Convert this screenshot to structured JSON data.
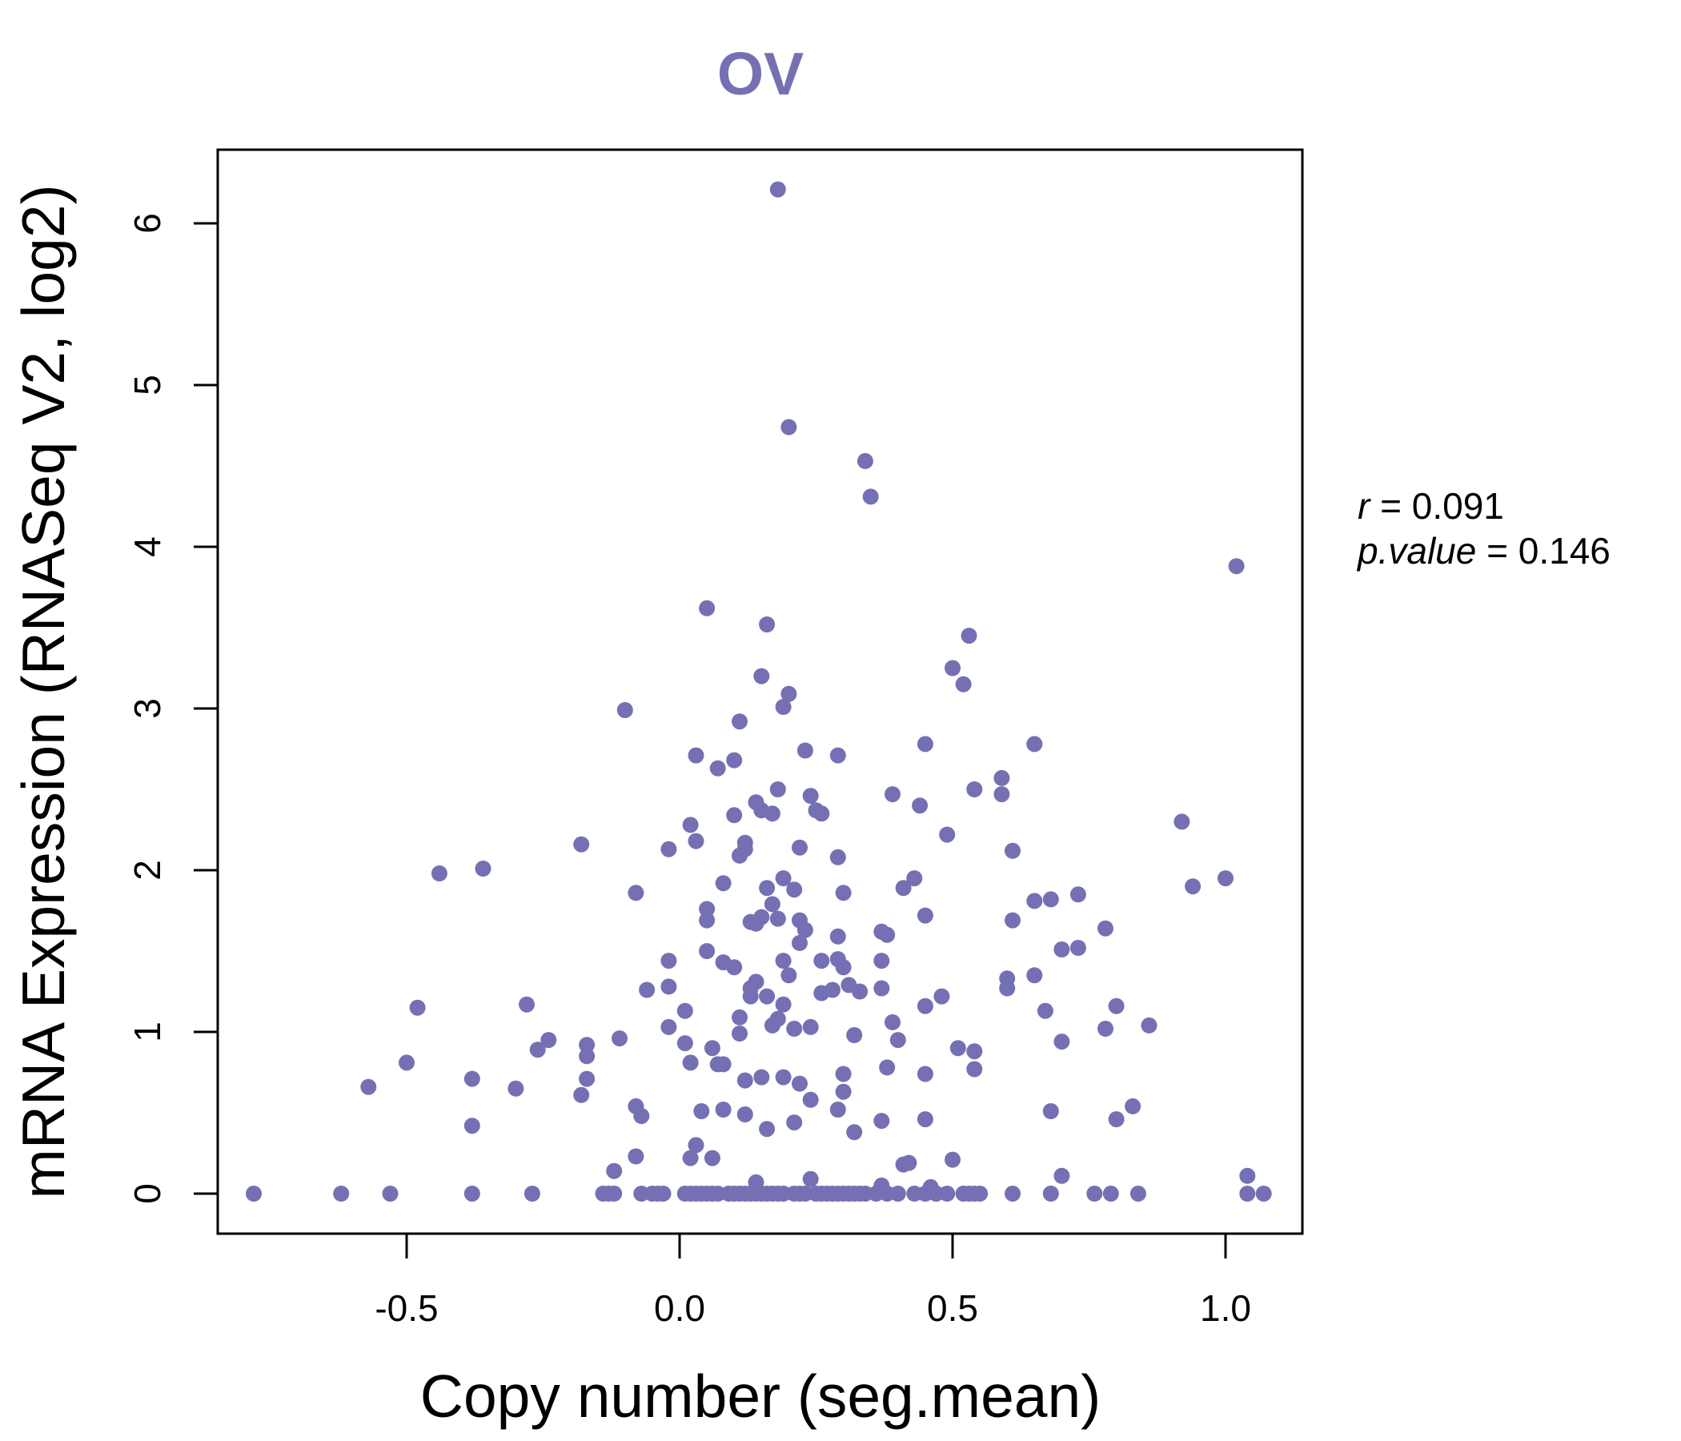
{
  "colors": {
    "point": "#7570b3",
    "title": "#7570b3"
  },
  "chart_data": {
    "type": "scatter",
    "title": "OV",
    "xlabel": "Copy number (seg.mean)",
    "ylabel": "mRNA Expression (RNASeq V2, log2)",
    "xlim": [
      -0.85,
      1.14
    ],
    "ylim": [
      -0.25,
      6.46
    ],
    "x_ticks": [
      -0.5,
      0.0,
      0.5,
      1.0
    ],
    "x_tick_labels": [
      "-0.5",
      "0.0",
      "0.5",
      "1.0"
    ],
    "y_ticks": [
      0,
      1,
      2,
      3,
      4,
      5,
      6
    ],
    "y_tick_labels": [
      "0",
      "1",
      "2",
      "3",
      "4",
      "5",
      "6"
    ],
    "stats": {
      "r_label": "r",
      "r_value": "0.091",
      "p_label": "p.value",
      "p_value": "0.146"
    },
    "points": [
      [
        -0.78,
        0
      ],
      [
        -0.62,
        0
      ],
      [
        -0.53,
        0
      ],
      [
        -0.38,
        0
      ],
      [
        -0.27,
        0
      ],
      [
        -0.14,
        0
      ],
      [
        -0.13,
        0
      ],
      [
        -0.12,
        0
      ],
      [
        -0.07,
        0
      ],
      [
        -0.05,
        0
      ],
      [
        -0.04,
        0
      ],
      [
        -0.03,
        0
      ],
      [
        0.01,
        0
      ],
      [
        0.02,
        0
      ],
      [
        0.03,
        0
      ],
      [
        0.04,
        0
      ],
      [
        0.05,
        0
      ],
      [
        0.06,
        0
      ],
      [
        0.07,
        0
      ],
      [
        0.09,
        0
      ],
      [
        0.1,
        0
      ],
      [
        0.11,
        0
      ],
      [
        0.12,
        0
      ],
      [
        0.13,
        0
      ],
      [
        0.14,
        0
      ],
      [
        0.15,
        0
      ],
      [
        0.16,
        0
      ],
      [
        0.17,
        0
      ],
      [
        0.18,
        0
      ],
      [
        0.19,
        0
      ],
      [
        0.21,
        0
      ],
      [
        0.22,
        0
      ],
      [
        0.23,
        0
      ],
      [
        0.25,
        0
      ],
      [
        0.26,
        0
      ],
      [
        0.27,
        0
      ],
      [
        0.28,
        0
      ],
      [
        0.29,
        0
      ],
      [
        0.3,
        0
      ],
      [
        0.31,
        0
      ],
      [
        0.32,
        0
      ],
      [
        0.33,
        0
      ],
      [
        0.34,
        0
      ],
      [
        0.36,
        0
      ],
      [
        0.38,
        0
      ],
      [
        0.4,
        0
      ],
      [
        0.43,
        0
      ],
      [
        0.45,
        0
      ],
      [
        0.47,
        0
      ],
      [
        0.49,
        0
      ],
      [
        0.52,
        0
      ],
      [
        0.53,
        0
      ],
      [
        0.54,
        0
      ],
      [
        0.55,
        0
      ],
      [
        0.61,
        0
      ],
      [
        0.68,
        0
      ],
      [
        0.76,
        0
      ],
      [
        0.79,
        0
      ],
      [
        0.84,
        0
      ],
      [
        1.04,
        0
      ],
      [
        1.07,
        0
      ],
      [
        0.14,
        0.07
      ],
      [
        0.24,
        0.09
      ],
      [
        0.37,
        0.05
      ],
      [
        0.46,
        0.04
      ],
      [
        0.7,
        0.11
      ],
      [
        1.04,
        0.11
      ],
      [
        -0.12,
        0.14
      ],
      [
        -0.08,
        0.23
      ],
      [
        0.02,
        0.22
      ],
      [
        0.06,
        0.22
      ],
      [
        0.42,
        0.19
      ],
      [
        0.41,
        0.18
      ],
      [
        0.5,
        0.21
      ],
      [
        0.03,
        0.3
      ],
      [
        0.16,
        0.4
      ],
      [
        0.21,
        0.44
      ],
      [
        0.32,
        0.38
      ],
      [
        -0.38,
        0.42
      ],
      [
        0.12,
        0.49
      ],
      [
        0.04,
        0.51
      ],
      [
        0.08,
        0.52
      ],
      [
        -0.07,
        0.48
      ],
      [
        -0.08,
        0.54
      ],
      [
        0.29,
        0.52
      ],
      [
        0.37,
        0.45
      ],
      [
        0.45,
        0.46
      ],
      [
        0.68,
        0.51
      ],
      [
        0.8,
        0.46
      ],
      [
        0.83,
        0.54
      ],
      [
        0.24,
        0.58
      ],
      [
        -0.57,
        0.66
      ],
      [
        -0.5,
        0.81
      ],
      [
        -0.38,
        0.71
      ],
      [
        -0.3,
        0.65
      ],
      [
        -0.18,
        0.61
      ],
      [
        -0.17,
        0.71
      ],
      [
        -0.17,
        0.85
      ],
      [
        -0.17,
        0.92
      ],
      [
        -0.26,
        0.89
      ],
      [
        -0.24,
        0.95
      ],
      [
        -0.11,
        0.96
      ],
      [
        0.01,
        0.93
      ],
      [
        0.02,
        0.81
      ],
      [
        0.06,
        0.9
      ],
      [
        0.07,
        0.8
      ],
      [
        0.08,
        0.8
      ],
      [
        0.12,
        0.7
      ],
      [
        0.15,
        0.72
      ],
      [
        0.19,
        0.72
      ],
      [
        0.22,
        0.68
      ],
      [
        0.3,
        0.74
      ],
      [
        0.3,
        0.63
      ],
      [
        0.32,
        0.98
      ],
      [
        0.38,
        0.78
      ],
      [
        0.4,
        0.95
      ],
      [
        0.45,
        0.74
      ],
      [
        0.51,
        0.9
      ],
      [
        0.54,
        0.88
      ],
      [
        0.54,
        0.77
      ],
      [
        0.7,
        0.94
      ],
      [
        0.78,
        1.02
      ],
      [
        -0.48,
        1.15
      ],
      [
        -0.28,
        1.17
      ],
      [
        -0.06,
        1.26
      ],
      [
        -0.02,
        1.28
      ],
      [
        -0.02,
        1.03
      ],
      [
        0.01,
        1.13
      ],
      [
        0.11,
        0.99
      ],
      [
        0.11,
        1.09
      ],
      [
        0.13,
        1.22
      ],
      [
        0.13,
        1.27
      ],
      [
        0.14,
        1.31
      ],
      [
        0.16,
        1.22
      ],
      [
        0.17,
        1.04
      ],
      [
        0.18,
        1.08
      ],
      [
        0.19,
        1.17
      ],
      [
        0.21,
        1.02
      ],
      [
        0.24,
        1.03
      ],
      [
        0.26,
        1.24
      ],
      [
        0.28,
        1.26
      ],
      [
        0.31,
        1.29
      ],
      [
        0.33,
        1.25
      ],
      [
        0.37,
        1.27
      ],
      [
        0.39,
        1.06
      ],
      [
        0.45,
        1.16
      ],
      [
        0.48,
        1.22
      ],
      [
        0.6,
        1.27
      ],
      [
        0.6,
        1.33
      ],
      [
        0.65,
        1.35
      ],
      [
        0.67,
        1.13
      ],
      [
        0.8,
        1.16
      ],
      [
        0.86,
        1.04
      ],
      [
        -0.02,
        1.44
      ],
      [
        0.05,
        1.5
      ],
      [
        0.08,
        1.43
      ],
      [
        0.1,
        1.4
      ],
      [
        0.13,
        1.68
      ],
      [
        0.14,
        1.67
      ],
      [
        0.15,
        1.71
      ],
      [
        0.17,
        1.79
      ],
      [
        0.18,
        1.7
      ],
      [
        0.19,
        1.44
      ],
      [
        0.2,
        1.35
      ],
      [
        0.22,
        1.55
      ],
      [
        0.22,
        1.69
      ],
      [
        0.23,
        1.63
      ],
      [
        0.26,
        1.44
      ],
      [
        0.29,
        1.59
      ],
      [
        0.29,
        1.45
      ],
      [
        0.3,
        1.4
      ],
      [
        0.37,
        1.44
      ],
      [
        0.37,
        1.62
      ],
      [
        0.38,
        1.6
      ],
      [
        0.45,
        1.72
      ],
      [
        0.61,
        1.69
      ],
      [
        0.65,
        1.81
      ],
      [
        0.68,
        1.82
      ],
      [
        0.7,
        1.51
      ],
      [
        0.73,
        1.52
      ],
      [
        0.78,
        1.64
      ],
      [
        -0.44,
        1.98
      ],
      [
        -0.36,
        2.01
      ],
      [
        -0.18,
        2.16
      ],
      [
        -0.08,
        1.86
      ],
      [
        -0.02,
        2.13
      ],
      [
        0.02,
        2.28
      ],
      [
        0.03,
        2.18
      ],
      [
        0.05,
        1.76
      ],
      [
        0.05,
        1.69
      ],
      [
        0.08,
        1.92
      ],
      [
        0.1,
        2.34
      ],
      [
        0.11,
        2.09
      ],
      [
        0.12,
        2.17
      ],
      [
        0.12,
        2.13
      ],
      [
        0.14,
        2.42
      ],
      [
        0.15,
        2.37
      ],
      [
        0.16,
        1.89
      ],
      [
        0.17,
        2.35
      ],
      [
        0.19,
        1.95
      ],
      [
        0.21,
        1.88
      ],
      [
        0.22,
        2.14
      ],
      [
        0.24,
        2.46
      ],
      [
        0.25,
        2.37
      ],
      [
        0.26,
        2.35
      ],
      [
        0.29,
        2.08
      ],
      [
        0.3,
        1.86
      ],
      [
        0.39,
        2.47
      ],
      [
        0.41,
        1.89
      ],
      [
        0.43,
        1.95
      ],
      [
        0.44,
        2.4
      ],
      [
        0.49,
        2.22
      ],
      [
        0.54,
        2.5
      ],
      [
        0.59,
        2.47
      ],
      [
        0.59,
        2.57
      ],
      [
        0.61,
        2.12
      ],
      [
        0.73,
        1.85
      ],
      [
        0.92,
        2.3
      ],
      [
        0.94,
        1.9
      ],
      [
        1.0,
        1.95
      ],
      [
        -0.1,
        2.99
      ],
      [
        0.03,
        2.71
      ],
      [
        0.07,
        2.63
      ],
      [
        0.1,
        2.68
      ],
      [
        0.11,
        2.92
      ],
      [
        0.15,
        3.2
      ],
      [
        0.18,
        2.5
      ],
      [
        0.19,
        3.01
      ],
      [
        0.2,
        3.09
      ],
      [
        0.23,
        2.74
      ],
      [
        0.29,
        2.71
      ],
      [
        0.45,
        2.78
      ],
      [
        0.5,
        3.25
      ],
      [
        0.52,
        3.15
      ],
      [
        0.53,
        3.45
      ],
      [
        0.65,
        2.78
      ],
      [
        0.05,
        3.62
      ],
      [
        0.16,
        3.52
      ],
      [
        1.02,
        3.88
      ],
      [
        0.34,
        4.53
      ],
      [
        0.35,
        4.31
      ],
      [
        0.2,
        4.74
      ],
      [
        0.18,
        6.21
      ]
    ]
  }
}
